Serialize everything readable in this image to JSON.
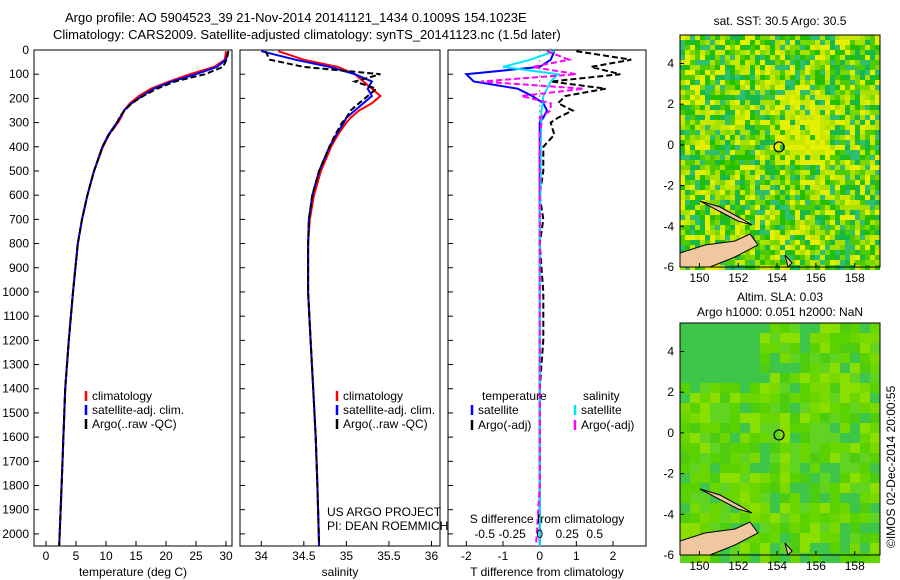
{
  "header": {
    "line1": "Argo profile: AO 5904523_39 21-Nov-2014 20141121_1434 0.1009S 154.1023E",
    "line2": "Climatology: CARS2009. Satellite-adjusted climatology: synTS_20141123.nc (1.5d later)"
  },
  "credits": {
    "project": "US ARGO PROJECT",
    "pi": "PI: DEAN ROEMMICH",
    "imos": "©IMOS 02-Dec-2014 20:00:55"
  },
  "colors": {
    "climatology": "#ff0000",
    "satellite": "#0000ff",
    "argo": "#000000",
    "satellite_salinity": "#00e5ff",
    "argo_salinity": "#ff00ff",
    "land": "#f0c8a0"
  },
  "chart_data": [
    {
      "type": "line",
      "id": "temperature",
      "xlabel": "temperature (deg C)",
      "ylabel": "",
      "xlim": [
        -2,
        31
      ],
      "ylim": [
        2050,
        0
      ],
      "xticks": [
        0,
        5,
        10,
        15,
        20,
        25,
        30
      ],
      "yticks": [
        0,
        100,
        200,
        300,
        400,
        500,
        600,
        700,
        800,
        900,
        1000,
        1100,
        1200,
        1300,
        1400,
        1500,
        1600,
        1700,
        1800,
        1900,
        2000
      ],
      "legend": [
        "climatology",
        "satellite-adj. clim.",
        "Argo(..raw -QC)"
      ],
      "depth": [
        5,
        40,
        70,
        100,
        130,
        160,
        190,
        220,
        250,
        280,
        300,
        350,
        400,
        500,
        600,
        700,
        800,
        1000,
        1200,
        1400,
        1600,
        1800,
        2050
      ],
      "series": [
        {
          "name": "climatology",
          "values": [
            30.0,
            29.8,
            28.0,
            24.0,
            20.5,
            17.5,
            15.5,
            14.0,
            13.0,
            12.5,
            12.0,
            10.5,
            9.5,
            8.0,
            6.9,
            6.0,
            5.3,
            4.5,
            3.8,
            3.2,
            2.9,
            2.6,
            2.2
          ]
        },
        {
          "name": "satellite-adj. clim.",
          "values": [
            30.4,
            30.0,
            28.5,
            25.0,
            21.0,
            18.0,
            16.0,
            14.3,
            13.0,
            12.3,
            11.8,
            10.4,
            9.4,
            8.0,
            6.9,
            6.0,
            5.3,
            4.5,
            3.8,
            3.2,
            2.9,
            2.6,
            2.2
          ]
        },
        {
          "name": "Argo(..raw -QC)",
          "values": [
            30.4,
            30.1,
            29.5,
            26.5,
            21.5,
            18.5,
            16.2,
            14.3,
            13.1,
            12.2,
            11.9,
            10.5,
            9.4,
            8.0,
            6.9,
            6.0,
            5.3,
            4.5,
            3.8,
            3.2,
            2.9,
            2.6,
            2.2
          ]
        }
      ]
    },
    {
      "type": "line",
      "id": "salinity",
      "xlabel": "salinity",
      "ylabel": "",
      "xlim": [
        33.75,
        36.1
      ],
      "ylim": [
        2050,
        0
      ],
      "xticks": [
        34,
        34.5,
        35,
        35.5,
        36
      ],
      "legend": [
        "climatology",
        "satellite-adj. clim.",
        "Argo(..raw -QC)"
      ],
      "depth": [
        5,
        40,
        70,
        100,
        130,
        160,
        190,
        220,
        250,
        280,
        300,
        350,
        400,
        500,
        600,
        700,
        800,
        1000,
        1200,
        1400,
        1600,
        1800,
        2050
      ],
      "series": [
        {
          "name": "climatology",
          "values": [
            34.2,
            34.5,
            34.9,
            35.1,
            35.2,
            35.3,
            35.4,
            35.3,
            35.15,
            35.05,
            35.0,
            34.9,
            34.82,
            34.7,
            34.62,
            34.57,
            34.55,
            34.55,
            34.58,
            34.61,
            34.64,
            34.66,
            34.68
          ]
        },
        {
          "name": "satellite-adj. clim.",
          "values": [
            34.0,
            34.4,
            34.8,
            35.1,
            35.3,
            35.25,
            35.3,
            35.2,
            35.1,
            35.0,
            34.97,
            34.88,
            34.8,
            34.68,
            34.6,
            34.56,
            34.55,
            34.55,
            34.58,
            34.61,
            34.64,
            34.66,
            34.68
          ]
        },
        {
          "name": "Argo(..raw -QC)",
          "values": [
            34.05,
            34.1,
            34.5,
            35.4,
            35.1,
            35.35,
            35.25,
            35.15,
            35.05,
            35.0,
            34.95,
            34.87,
            34.8,
            34.68,
            34.6,
            34.56,
            34.55,
            34.55,
            34.58,
            34.61,
            34.64,
            34.66,
            34.68
          ]
        }
      ]
    },
    {
      "type": "line",
      "id": "difference",
      "xlabel": "T difference from climatology",
      "xlabel_top": "S difference from climatology",
      "xlim": [
        -2.5,
        2.9
      ],
      "ylim": [
        2050,
        0
      ],
      "xticks": [
        -2,
        -1,
        0,
        1,
        2
      ],
      "xticks_top_labels": [
        "-0.5",
        "-0.25",
        "0",
        "0.25",
        "0.5"
      ],
      "legend_headers": [
        "temperature",
        "salinity"
      ],
      "legend": [
        "satellite",
        "Argo(-adj)",
        "satellite",
        "Argo(-adj)"
      ],
      "depth": [
        5,
        40,
        70,
        100,
        130,
        160,
        190,
        220,
        250,
        280,
        300,
        350,
        400,
        500,
        600,
        700,
        800,
        1000,
        1200,
        1400,
        1600,
        1800,
        2050
      ],
      "series": [
        {
          "name": "temperature satellite",
          "values": [
            0.4,
            0.3,
            0.0,
            -2.0,
            -1.8,
            -0.6,
            -0.2,
            0.1,
            0.2,
            0.1,
            0.0,
            0.0,
            0.0,
            0.0,
            0.0,
            0.0,
            0.0,
            0.0,
            0.0,
            0.0,
            0.0,
            0.0,
            0.0
          ]
        },
        {
          "name": "temperature Argo(-adj)",
          "values": [
            1.0,
            2.5,
            1.4,
            2.2,
            0.3,
            1.8,
            0.7,
            0.5,
            0.9,
            0.5,
            0.3,
            0.4,
            0.1,
            0.1,
            0.0,
            0.1,
            0.0,
            0.1,
            0.1,
            0.0,
            0.0,
            0.0,
            0.0
          ]
        },
        {
          "name": "salinity satellite",
          "values": [
            0.4,
            -0.25,
            -1.0,
            0.5,
            0.3,
            0.2,
            0.1,
            0.08,
            0.05,
            0.05,
            0.04,
            0.04,
            0.03,
            0.03,
            0.02,
            0.0,
            0.0,
            0.0,
            0.0,
            0.0,
            0.0,
            0.0,
            0.0
          ]
        },
        {
          "name": "salinity Argo(-adj)",
          "values": [
            0.2,
            0.8,
            -0.2,
            1.0,
            -1.6,
            1.2,
            -0.5,
            0.3,
            0.3,
            0.0,
            0.05,
            0.0,
            0.0,
            0.0,
            0.0,
            0.0,
            0.0,
            0.0,
            0.0,
            0.0,
            0.0,
            0.0,
            -0.1
          ]
        }
      ]
    },
    {
      "type": "heatmap",
      "id": "sst-map",
      "title": "sat. SST: 30.5  Argo: 30.5",
      "xlim": [
        149,
        159.3
      ],
      "ylim": [
        -6,
        5.4
      ],
      "xticks": [
        150,
        152,
        154,
        156,
        158
      ],
      "yticks": [
        -6,
        -4,
        -2,
        0,
        2,
        4
      ],
      "marker": [
        154.1,
        -0.1
      ]
    },
    {
      "type": "heatmap",
      "id": "sla-map",
      "title": "Altim. SLA: 0.03",
      "subtitle": "Argo h1000: 0.051 h2000: NaN",
      "xlim": [
        149,
        159.3
      ],
      "ylim": [
        -6,
        5.4
      ],
      "xticks": [
        150,
        152,
        154,
        156,
        158
      ],
      "yticks": [
        -6,
        -4,
        -2,
        0,
        2,
        4
      ],
      "marker": [
        154.1,
        -0.1
      ]
    }
  ]
}
